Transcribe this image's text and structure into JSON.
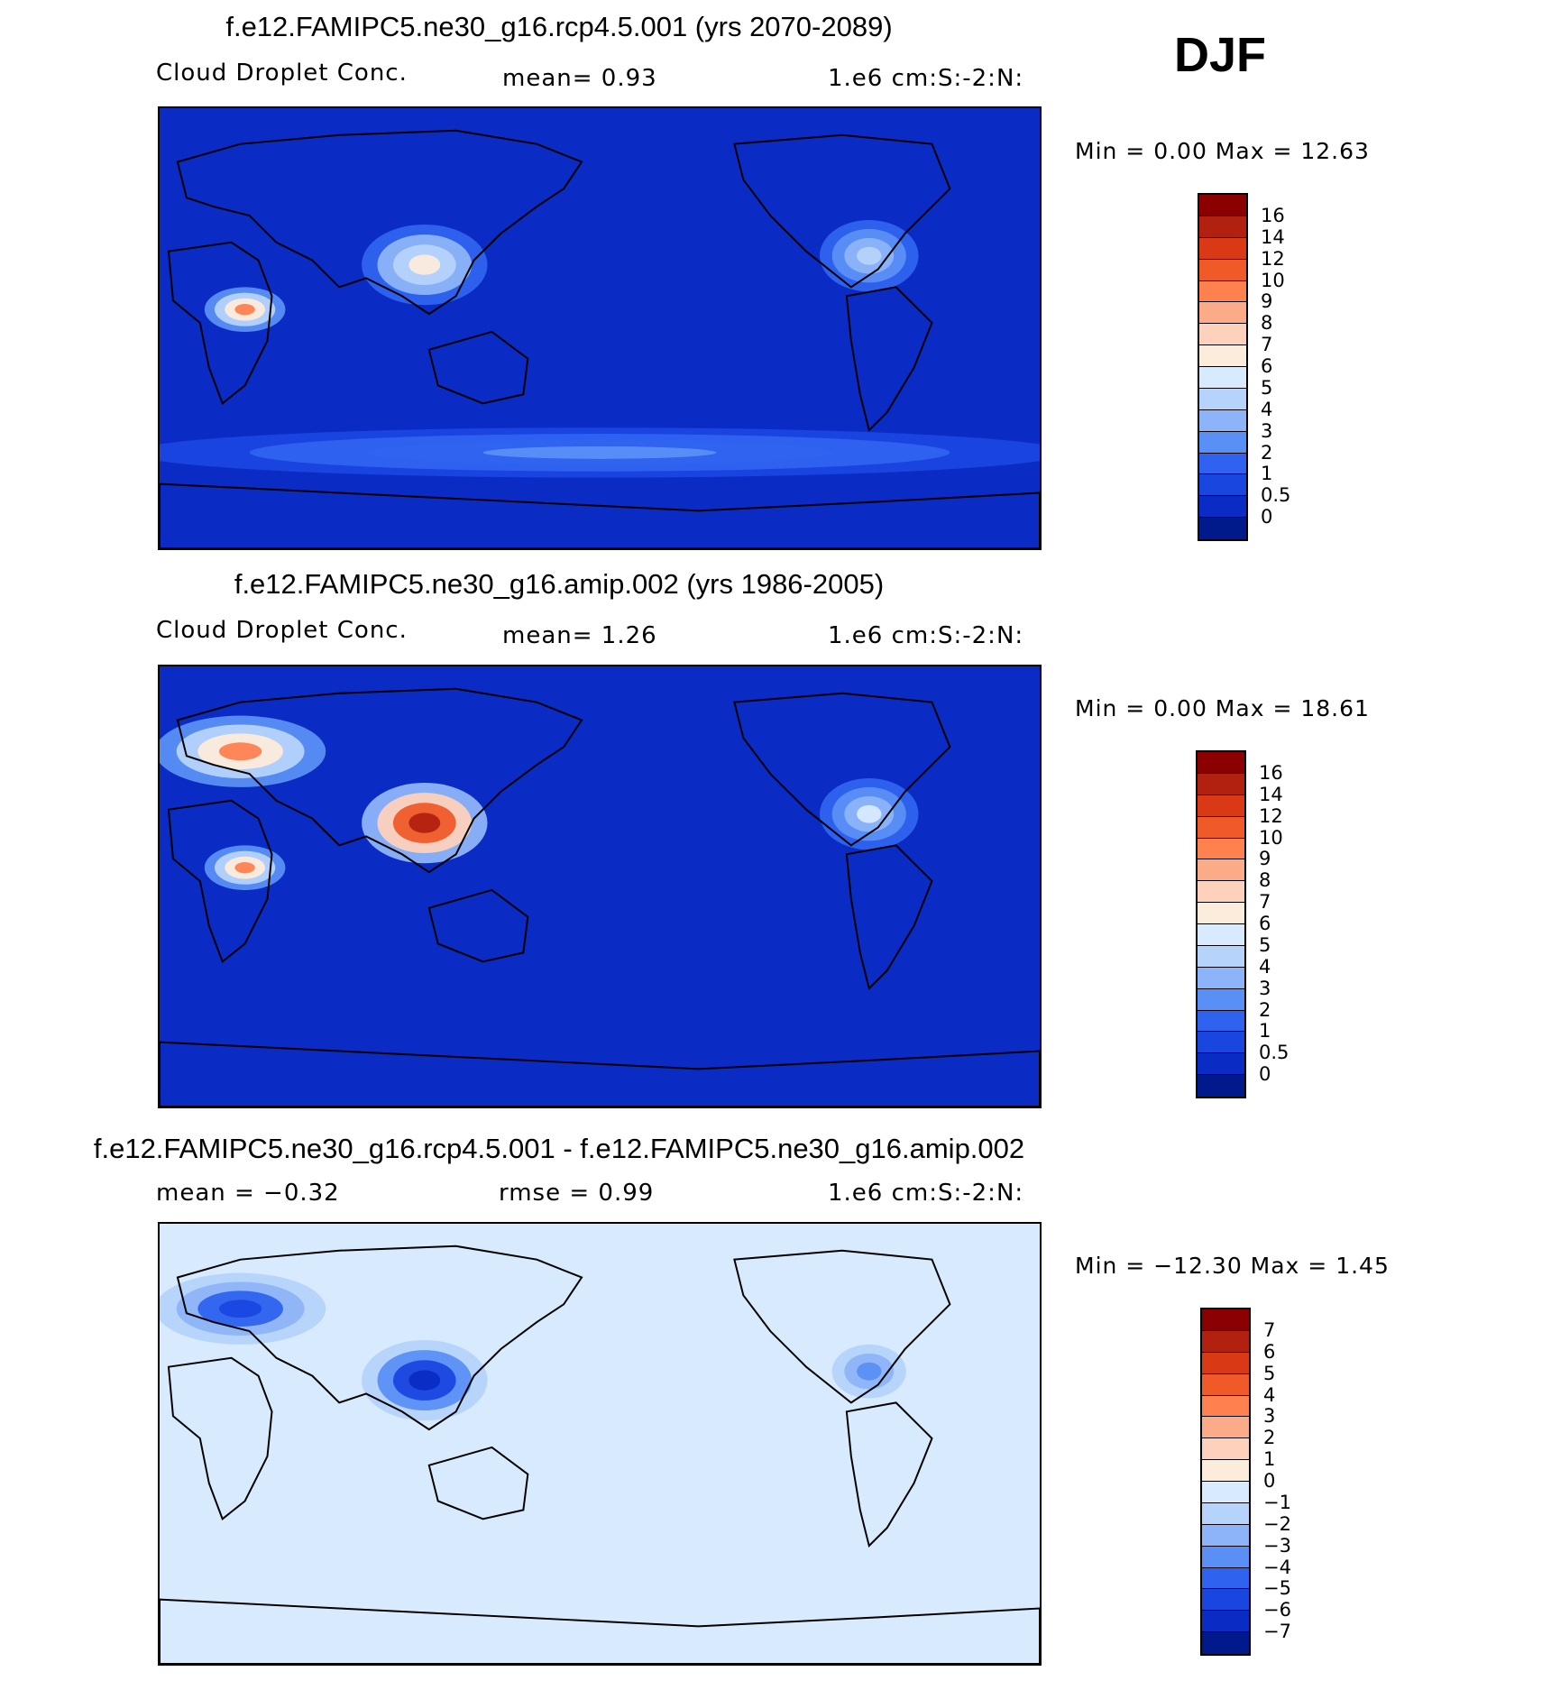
{
  "season": "DJF",
  "panels": [
    {
      "title": "f.e12.FAMIPC5.ne30_g16.rcp4.5.001 (yrs 2070-2089)",
      "left_label": "Cloud Droplet Conc.",
      "middle_label": "mean=    0.93",
      "right_label": "1.e6 cm:S:-2:N:",
      "minmax_text": "Min =    0.00 Max =   12.63",
      "colorbar_labels": [
        "16",
        "14",
        "12",
        "10",
        "9",
        "8",
        "7",
        "6",
        "5",
        "4",
        "3",
        "2",
        "1",
        "0.5",
        "0"
      ],
      "colorbar_colors": [
        "#8b0000",
        "#b22010",
        "#d93a15",
        "#f05a28",
        "#ff8150",
        "#fcab88",
        "#fdd1bb",
        "#fcecdc",
        "#d8eafd",
        "#b5d3fb",
        "#8db4f8",
        "#5a8ff5",
        "#2f63ef",
        "#1a46e0",
        "#0a2bc4",
        "#001a8c"
      ]
    },
    {
      "title": "f.e12.FAMIPC5.ne30_g16.amip.002 (yrs 1986-2005)",
      "left_label": "Cloud Droplet Conc.",
      "middle_label": "mean=    1.26",
      "right_label": "1.e6 cm:S:-2:N:",
      "minmax_text": "Min =    0.00 Max =   18.61",
      "colorbar_labels": [
        "16",
        "14",
        "12",
        "10",
        "9",
        "8",
        "7",
        "6",
        "5",
        "4",
        "3",
        "2",
        "1",
        "0.5",
        "0"
      ],
      "colorbar_colors": [
        "#8b0000",
        "#b22010",
        "#d93a15",
        "#f05a28",
        "#ff8150",
        "#fcab88",
        "#fdd1bb",
        "#fcecdc",
        "#d8eafd",
        "#b5d3fb",
        "#8db4f8",
        "#5a8ff5",
        "#2f63ef",
        "#1a46e0",
        "#0a2bc4",
        "#001a8c"
      ]
    },
    {
      "title": "f.e12.FAMIPC5.ne30_g16.rcp4.5.001 - f.e12.FAMIPC5.ne30_g16.amip.002",
      "left_label": "mean =   −0.32",
      "middle_label": "rmse =    0.99",
      "right_label": "1.e6 cm:S:-2:N:",
      "minmax_text": "Min = −12.30 Max =    1.45",
      "colorbar_labels": [
        "7",
        "6",
        "5",
        "4",
        "3",
        "2",
        "1",
        "0",
        "−1",
        "−2",
        "−3",
        "−4",
        "−5",
        "−6",
        "−7"
      ],
      "colorbar_colors": [
        "#8b0000",
        "#b22010",
        "#d93a15",
        "#f05a28",
        "#ff8150",
        "#fcab88",
        "#fdd1bb",
        "#fcecdc",
        "#d8eafd",
        "#b5d3fb",
        "#8db4f8",
        "#5a8ff5",
        "#2f63ef",
        "#1a46e0",
        "#0a2bc4",
        "#001a8c"
      ]
    }
  ],
  "chart_data": [
    {
      "type": "heatmap",
      "title": "f.e12.FAMIPC5.ne30_g16.rcp4.5.001 (yrs 2070-2089)",
      "variable": "Cloud Droplet Conc.",
      "units": "1.e6 cm:S:-2:N:",
      "mean": 0.93,
      "min": 0.0,
      "max": 12.63,
      "contour_levels": [
        0,
        0.5,
        1,
        2,
        3,
        4,
        5,
        6,
        7,
        8,
        9,
        10,
        12,
        14,
        16
      ],
      "background_color": "#0a2bc4",
      "regions": [
        {
          "name": "southern-ocean-band",
          "level": 2
        },
        {
          "name": "east-asia",
          "level": 6
        },
        {
          "name": "central-africa",
          "level": 9
        },
        {
          "name": "north-america-east",
          "level": 4
        }
      ]
    },
    {
      "type": "heatmap",
      "title": "f.e12.FAMIPC5.ne30_g16.amip.002 (yrs 1986-2005)",
      "variable": "Cloud Droplet Conc.",
      "units": "1.e6 cm:S:-2:N:",
      "mean": 1.26,
      "min": 0.0,
      "max": 18.61,
      "contour_levels": [
        0,
        0.5,
        1,
        2,
        3,
        4,
        5,
        6,
        7,
        8,
        9,
        10,
        12,
        14,
        16
      ],
      "background_color": "#0a2bc4",
      "regions": [
        {
          "name": "europe",
          "level": 9
        },
        {
          "name": "east-asia",
          "level": 14
        },
        {
          "name": "central-africa",
          "level": 9
        },
        {
          "name": "north-america-east",
          "level": 5
        }
      ]
    },
    {
      "type": "heatmap",
      "title": "f.e12.FAMIPC5.ne30_g16.rcp4.5.001 - f.e12.FAMIPC5.ne30_g16.amip.002",
      "units": "1.e6 cm:S:-2:N:",
      "mean": -0.32,
      "rmse": 0.99,
      "min": -12.3,
      "max": 1.45,
      "contour_levels": [
        -7,
        -6,
        -5,
        -4,
        -3,
        -2,
        -1,
        0,
        1,
        2,
        3,
        4,
        5,
        6,
        7
      ],
      "background_color": "#d8eafd",
      "regions": [
        {
          "name": "europe",
          "level": -6
        },
        {
          "name": "east-asia",
          "level": -7
        },
        {
          "name": "north-america-east",
          "level": -4
        }
      ]
    }
  ]
}
